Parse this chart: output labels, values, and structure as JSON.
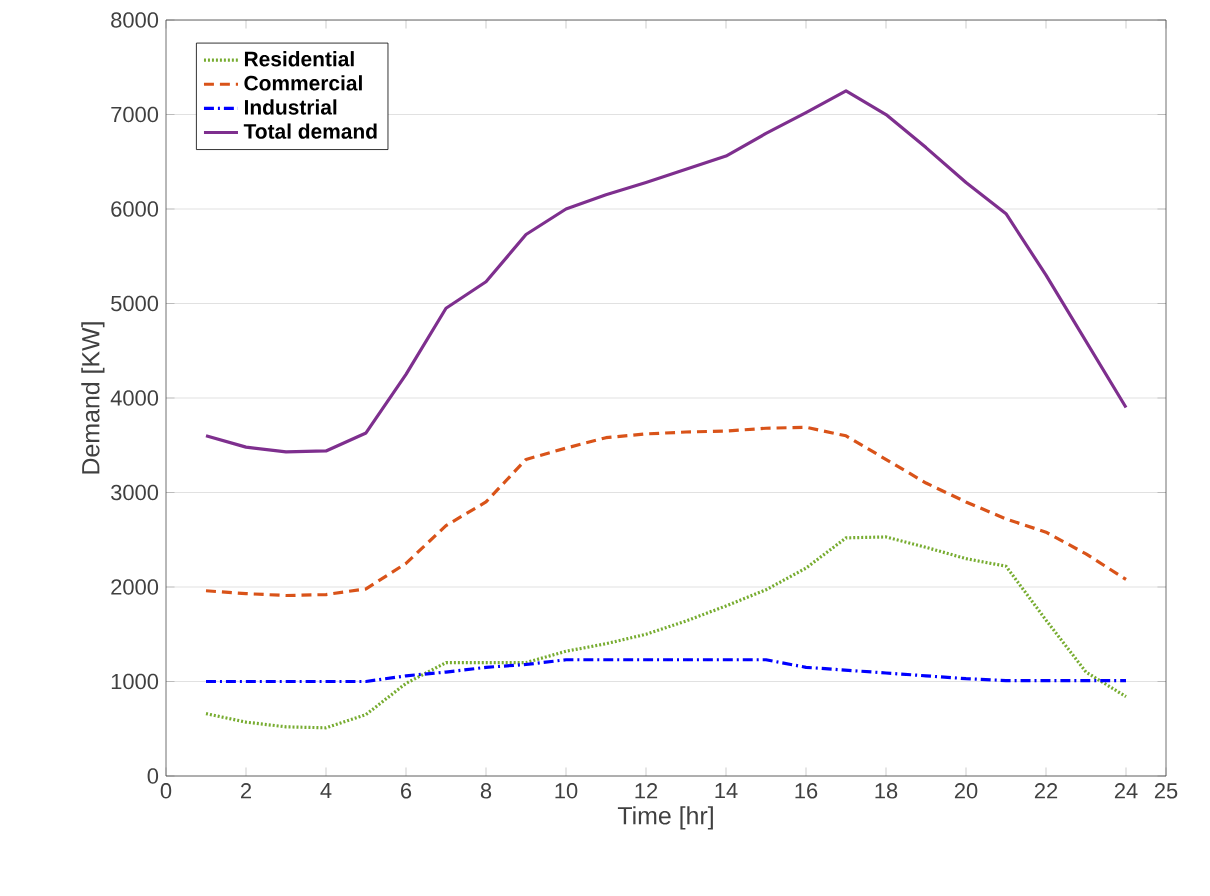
{
  "chart_data": {
    "type": "line",
    "xlabel": "Time [hr]",
    "ylabel": "Demand [KW]",
    "x": [
      1,
      2,
      3,
      4,
      5,
      6,
      7,
      8,
      9,
      10,
      11,
      12,
      13,
      14,
      15,
      16,
      17,
      18,
      19,
      20,
      21,
      22,
      23,
      24
    ],
    "xlim": [
      0,
      25
    ],
    "xticks": [
      0,
      2,
      4,
      6,
      8,
      10,
      12,
      14,
      16,
      18,
      20,
      22,
      24,
      25
    ],
    "ylim": [
      0,
      8000
    ],
    "yticks": [
      0,
      1000,
      2000,
      3000,
      4000,
      5000,
      6000,
      7000,
      8000
    ],
    "grid": "y",
    "legend": "top left",
    "series": [
      {
        "name": "Residential",
        "color": "#77ac30",
        "line_style": "dotted",
        "values": [
          660,
          570,
          520,
          510,
          650,
          980,
          1200,
          1200,
          1200,
          1320,
          1400,
          1500,
          1640,
          1800,
          1970,
          2200,
          2520,
          2530,
          2420,
          2300,
          2220,
          1650,
          1100,
          840
        ]
      },
      {
        "name": "Commercial",
        "color": "#d95319",
        "line_style": "dashed",
        "values": [
          1960,
          1930,
          1910,
          1920,
          1980,
          2250,
          2650,
          2900,
          3350,
          3470,
          3580,
          3620,
          3640,
          3650,
          3680,
          3690,
          3600,
          3350,
          3100,
          2900,
          2720,
          2580,
          2350,
          2080
        ]
      },
      {
        "name": "Industrial",
        "color": "#0000ff",
        "line_style": "dashdot",
        "values": [
          1000,
          1000,
          1000,
          1000,
          1000,
          1060,
          1100,
          1150,
          1180,
          1230,
          1230,
          1230,
          1230,
          1230,
          1230,
          1150,
          1120,
          1090,
          1060,
          1030,
          1010,
          1010,
          1010,
          1010
        ]
      },
      {
        "name": "Total demand",
        "color": "#7e2f8e",
        "line_style": "solid",
        "values": [
          3600,
          3480,
          3430,
          3440,
          3630,
          4250,
          4950,
          5230,
          5730,
          6000,
          6150,
          6280,
          6420,
          6560,
          6800,
          7020,
          7250,
          7000,
          6650,
          6280,
          5950,
          5300,
          4600,
          3900
        ]
      }
    ]
  }
}
